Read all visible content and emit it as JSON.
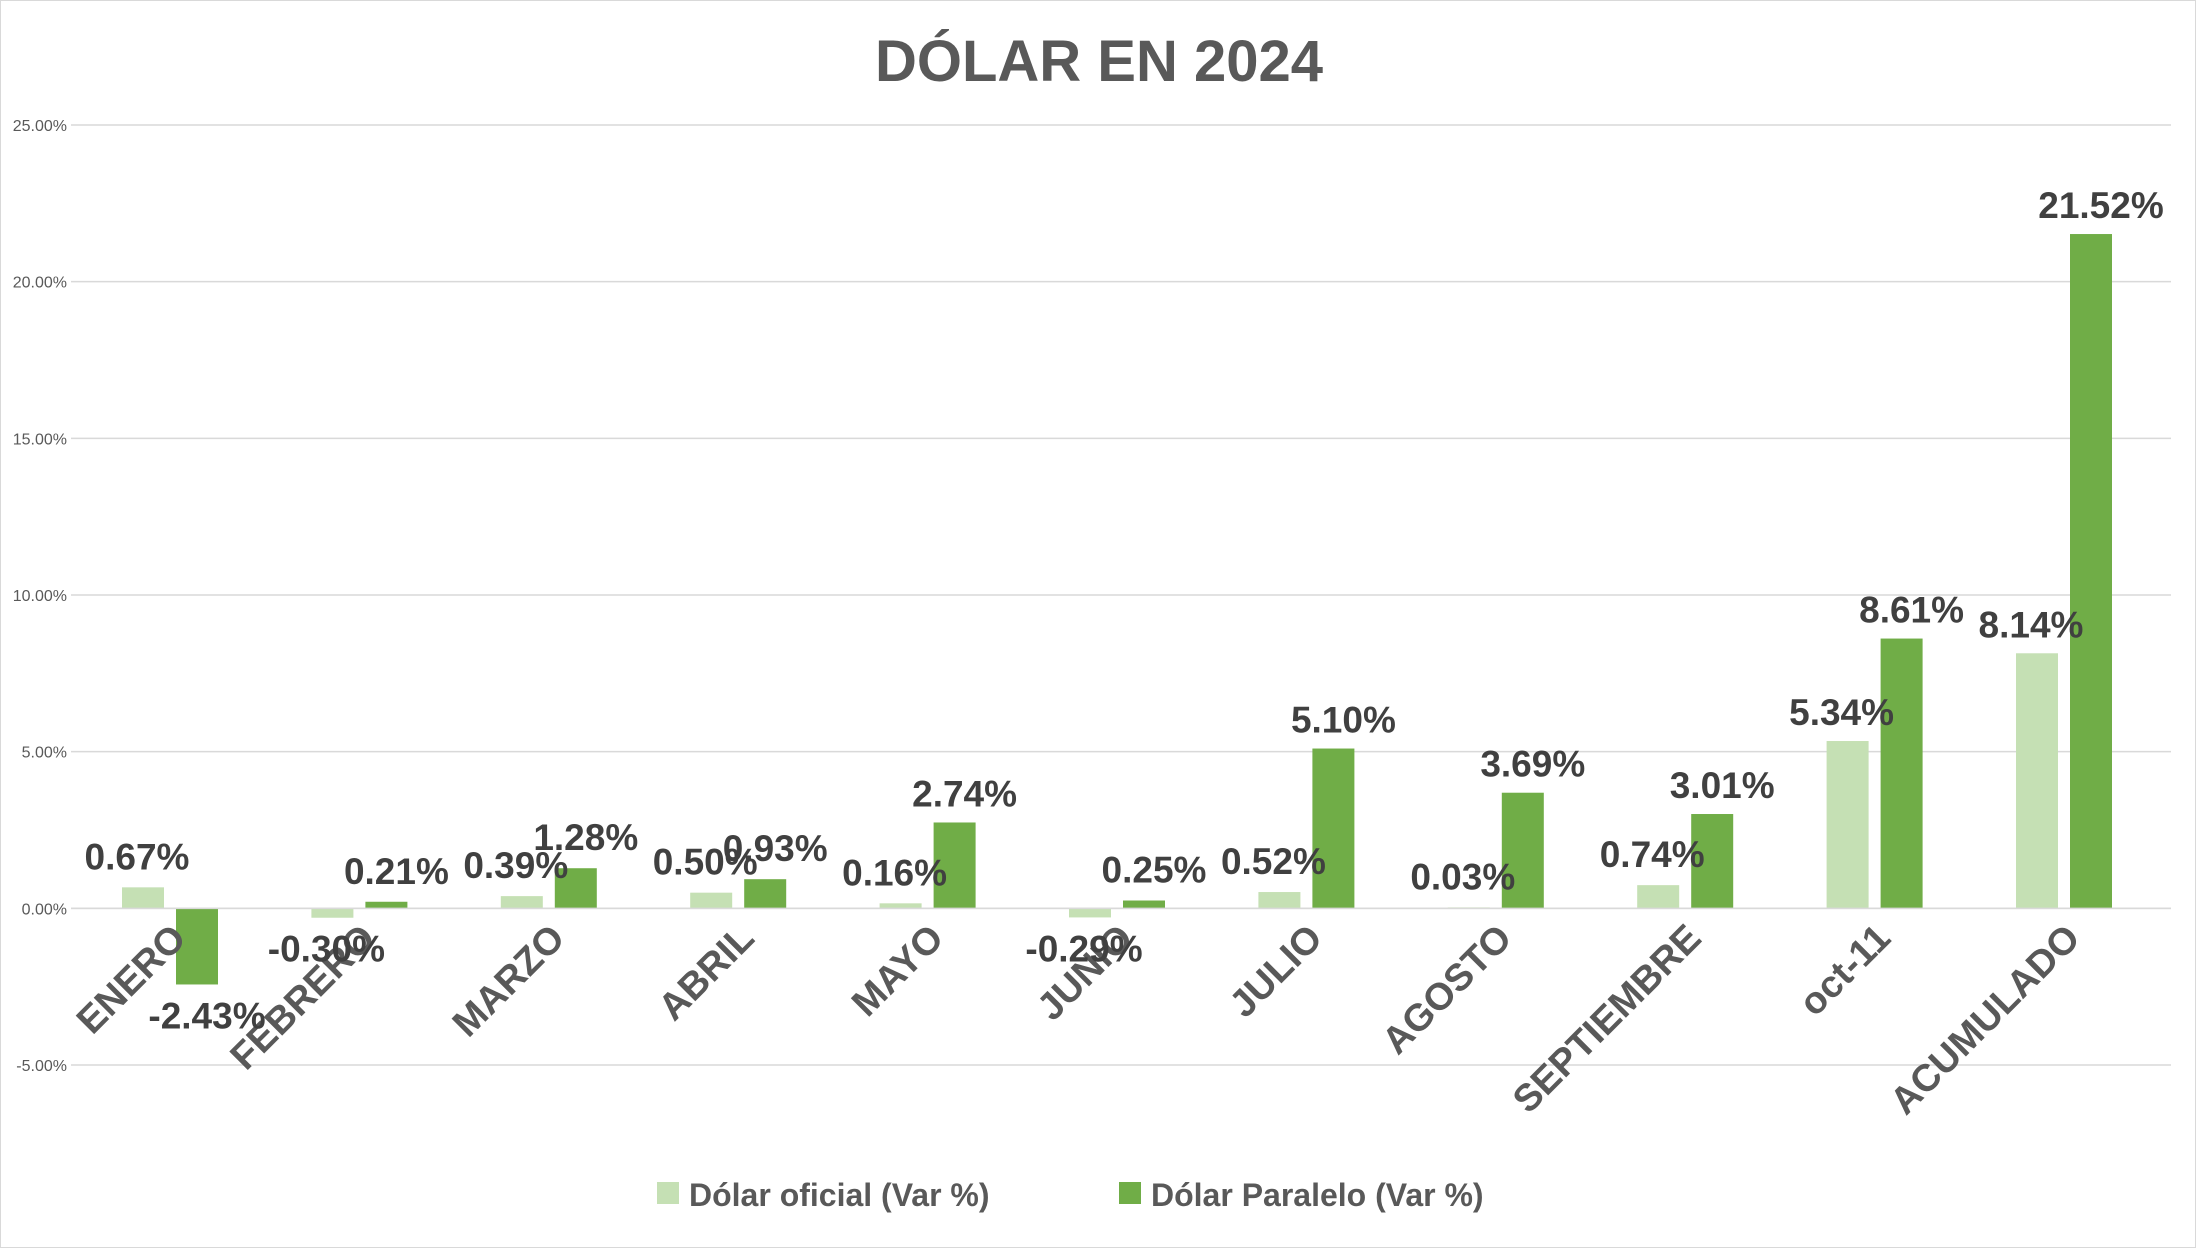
{
  "chart_data": {
    "type": "bar",
    "title": "DÓLAR EN 2024",
    "categories": [
      "ENERO",
      "FEBRERO",
      "MARZO",
      "ABRIL",
      "MAYO",
      "JUNIO",
      "JULIO",
      "AGOSTO",
      "SEPTIEMBRE",
      "oct-11",
      "ACUMULADO"
    ],
    "series": [
      {
        "name": "Dólar oficial (Var %)",
        "color": "#c5e0b4",
        "values": [
          0.67,
          -0.3,
          0.39,
          0.5,
          0.16,
          -0.29,
          0.52,
          0.03,
          0.74,
          5.34,
          8.14
        ],
        "labels": [
          "0.67%",
          "-0.30%",
          "0.39%",
          "0.50%",
          "0.16%",
          "-0.29%",
          "0.52%",
          "0.03%",
          "0.74%",
          "5.34%",
          "8.14%"
        ]
      },
      {
        "name": "Dólar Paralelo (Var %)",
        "color": "#70ad47",
        "values": [
          -2.43,
          0.21,
          1.28,
          0.93,
          2.74,
          0.25,
          5.1,
          3.69,
          3.01,
          8.61,
          21.52
        ],
        "labels": [
          "-2.43%",
          "0.21%",
          "1.28%",
          "0.93%",
          "2.74%",
          "0.25%",
          "5.10%",
          "3.69%",
          "3.01%",
          "8.61%",
          "21.52%"
        ]
      }
    ],
    "ylim": [
      -5,
      25
    ],
    "yticks": [
      25,
      20,
      15,
      10,
      5,
      0,
      -5
    ],
    "ytick_labels": [
      "25.00%",
      "20.00%",
      "15.00%",
      "10.00%",
      "5.00%",
      "0.00%",
      "-5.00%"
    ],
    "grid": true,
    "legend": "bottom"
  }
}
